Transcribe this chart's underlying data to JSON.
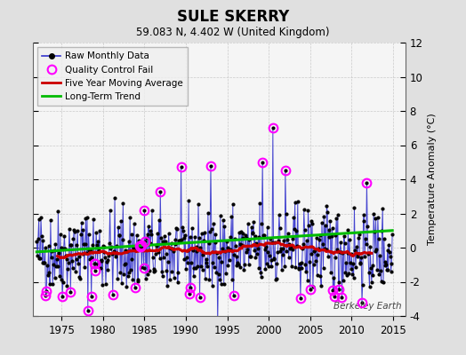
{
  "title": "SULE SKERRY",
  "subtitle": "59.083 N, 4.402 W (United Kingdom)",
  "ylabel": "Temperature Anomaly (°C)",
  "watermark": "Berkeley Earth",
  "xlim": [
    1971.5,
    2016.5
  ],
  "ylim": [
    -4,
    12
  ],
  "yticks": [
    -4,
    -2,
    0,
    2,
    4,
    6,
    8,
    10,
    12
  ],
  "xticks": [
    1975,
    1980,
    1985,
    1990,
    1995,
    2000,
    2005,
    2010,
    2015
  ],
  "bg_color": "#e0e0e0",
  "plot_bg_color": "#f5f5f5",
  "raw_line_color": "#3333cc",
  "raw_dot_color": "#000000",
  "qc_fail_color": "#ff00ff",
  "moving_avg_color": "#cc0000",
  "trend_color": "#00bb00",
  "seed": 42,
  "n_months": 516,
  "start_year": 1972.0
}
